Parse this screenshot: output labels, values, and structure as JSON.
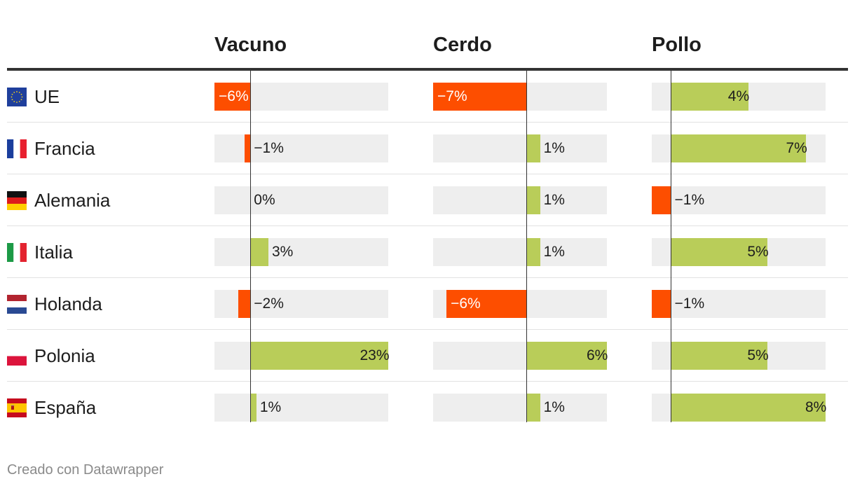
{
  "colors": {
    "positive": "#b9cd59",
    "negative": "#fd4e00",
    "track": "#eeeeee",
    "rule": "#333333"
  },
  "footer": "Creado con Datawrapper",
  "chart_data": {
    "type": "bar",
    "unit": "%",
    "columns": [
      {
        "key": "vacuno",
        "title": "Vacuno",
        "range": [
          -6,
          23
        ]
      },
      {
        "key": "cerdo",
        "title": "Cerdo",
        "range": [
          -7,
          6
        ]
      },
      {
        "key": "pollo",
        "title": "Pollo",
        "range": [
          -1,
          8
        ]
      }
    ],
    "rows": [
      {
        "country": "UE",
        "flag": "eu-flag-icon",
        "values": {
          "vacuno": -6,
          "cerdo": -7,
          "pollo": 4
        }
      },
      {
        "country": "Francia",
        "flag": "france-flag-icon",
        "values": {
          "vacuno": -1,
          "cerdo": 1,
          "pollo": 7
        }
      },
      {
        "country": "Alemania",
        "flag": "germany-flag-icon",
        "values": {
          "vacuno": 0,
          "cerdo": 1,
          "pollo": -1
        }
      },
      {
        "country": "Italia",
        "flag": "italy-flag-icon",
        "values": {
          "vacuno": 3,
          "cerdo": 1,
          "pollo": 5
        }
      },
      {
        "country": "Holanda",
        "flag": "netherlands-flag-icon",
        "values": {
          "vacuno": -2,
          "cerdo": -6,
          "pollo": -1
        }
      },
      {
        "country": "Polonia",
        "flag": "poland-flag-icon",
        "values": {
          "vacuno": 23,
          "cerdo": 6,
          "pollo": 5
        }
      },
      {
        "country": "España",
        "flag": "spain-flag-icon",
        "values": {
          "vacuno": 1,
          "cerdo": 1,
          "pollo": 8
        }
      }
    ]
  }
}
